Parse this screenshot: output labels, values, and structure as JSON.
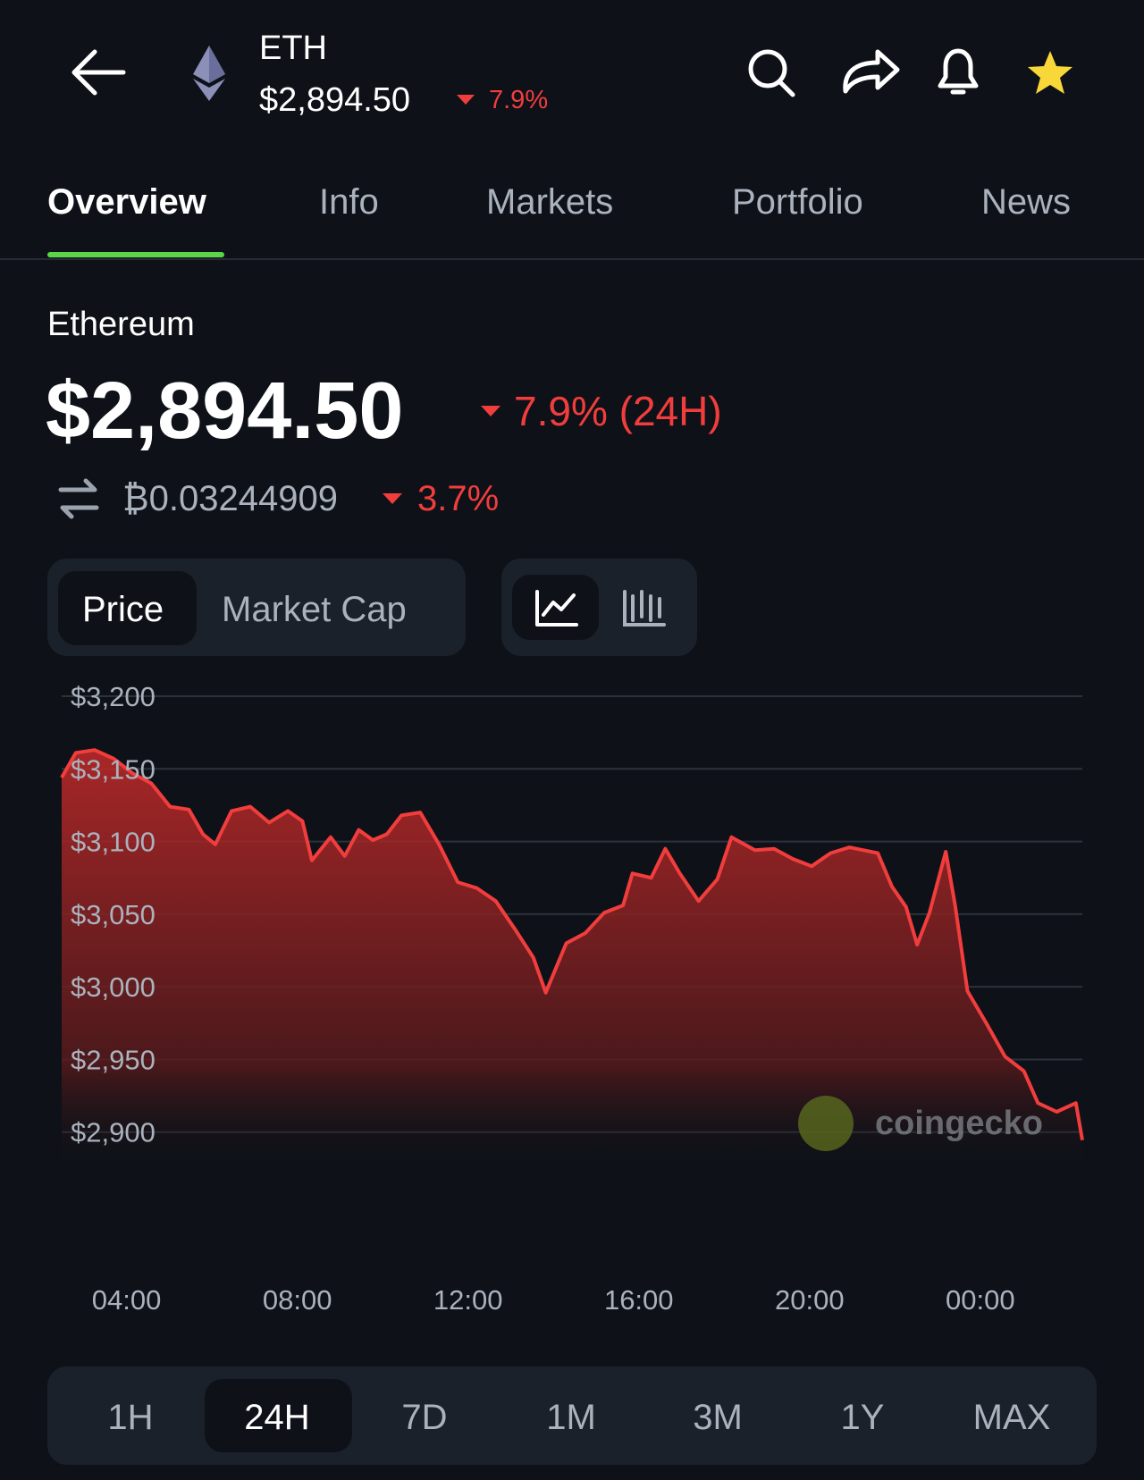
{
  "header": {
    "symbol": "ETH",
    "price": "$2,894.50",
    "change": "7.9%"
  },
  "tabs": [
    "Overview",
    "Info",
    "Markets",
    "Portfolio",
    "News"
  ],
  "overview": {
    "name": "Ethereum",
    "price": "$2,894.50",
    "change": "7.9% (24H)",
    "btc_price": "₿0.03244909",
    "btc_change": "3.7%"
  },
  "toggles": [
    "Price",
    "Market Cap"
  ],
  "watermark": "coingecko",
  "ranges": [
    "1H",
    "24H",
    "7D",
    "1M",
    "3M",
    "1Y",
    "MAX"
  ],
  "chart_data": {
    "type": "area",
    "color": "#f23d3d",
    "x": [
      2.48,
      2.81,
      3.25,
      3.7,
      4.14,
      4.58,
      5.02,
      5.46,
      5.79,
      6.08,
      6.46,
      6.9,
      7.34,
      7.78,
      8.12,
      8.34,
      8.78,
      9.11,
      9.44,
      9.77,
      10.1,
      10.44,
      10.88,
      11.32,
      11.76,
      12.2,
      12.65,
      13.09,
      13.53,
      13.82,
      14.3,
      14.75,
      15.19,
      15.63,
      15.85,
      16.29,
      16.62,
      16.96,
      17.4,
      17.84,
      18.17,
      18.72,
      19.17,
      19.61,
      20.05,
      20.49,
      20.93,
      21.6,
      21.93,
      22.26,
      22.52,
      22.81,
      23.19,
      23.41,
      23.7,
      24.14,
      24.58,
      25.02,
      25.35,
      25.79,
      26.24,
      26.39
    ],
    "values": [
      3144,
      3161,
      3163,
      3157,
      3147,
      3140,
      3124,
      3122,
      3105,
      3098,
      3121,
      3124,
      3113,
      3121,
      3114,
      3087,
      3103,
      3090,
      3108,
      3101,
      3105,
      3118,
      3120,
      3098,
      3072,
      3068,
      3059,
      3040,
      3020,
      2996,
      3030,
      3037,
      3051,
      3056,
      3078,
      3075,
      3095,
      3078,
      3059,
      3074,
      3103,
      3094,
      3095,
      3088,
      3083,
      3092,
      3096,
      3092,
      3069,
      3055,
      3029,
      3051,
      3093,
      3056,
      2997,
      2975,
      2952,
      2942,
      2920,
      2914,
      2920,
      2894.5
    ],
    "xlim": [
      2.48,
      26.39
    ],
    "ylim": [
      2874,
      3200
    ],
    "xticks": [
      {
        "value": 4,
        "label": "04:00"
      },
      {
        "value": 8,
        "label": "08:00"
      },
      {
        "value": 12,
        "label": "12:00"
      },
      {
        "value": 16,
        "label": "16:00"
      },
      {
        "value": 20,
        "label": "20:00"
      },
      {
        "value": 24,
        "label": "00:00"
      }
    ],
    "yticks": [
      {
        "value": 3200,
        "label": "$3,200"
      },
      {
        "value": 3150,
        "label": "$3,150"
      },
      {
        "value": 3100,
        "label": "$3,100"
      },
      {
        "value": 3050,
        "label": "$3,050"
      },
      {
        "value": 3000,
        "label": "$3,000"
      },
      {
        "value": 2950,
        "label": "$2,950"
      },
      {
        "value": 2900,
        "label": "$2,900"
      }
    ],
    "grid": true
  }
}
